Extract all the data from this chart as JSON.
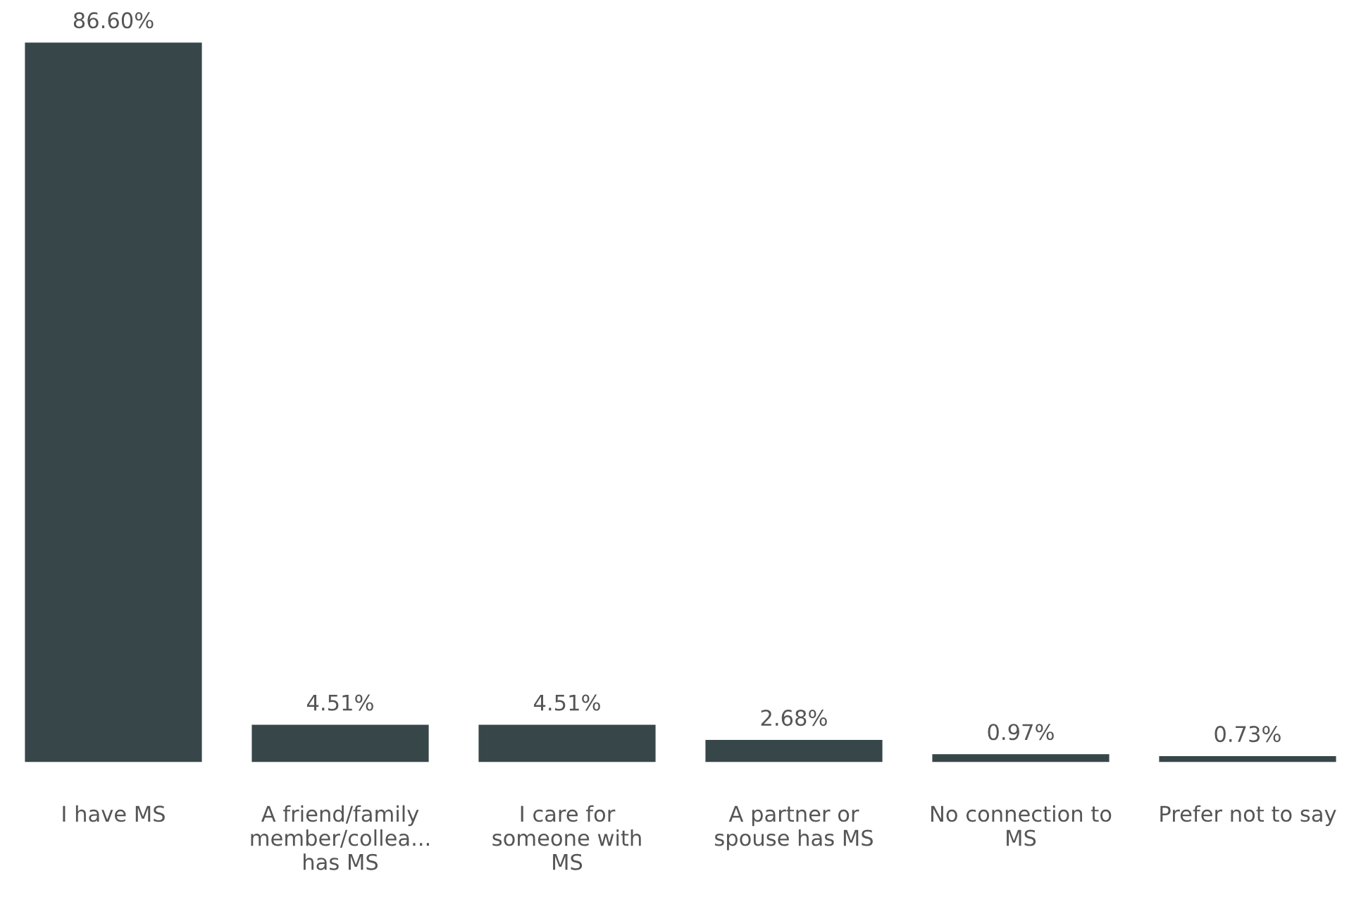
{
  "chart_data": {
    "type": "bar",
    "categories": [
      "I have MS",
      "A friend/family\nmember/collea...\nhas MS",
      "I care for\nsomeone with\nMS",
      "A partner or\nspouse has MS",
      "No connection to\nMS",
      "Prefer not to say"
    ],
    "values": [
      86.6,
      4.51,
      4.51,
      2.68,
      0.97,
      0.73
    ],
    "value_labels": [
      "86.60%",
      "4.51%",
      "4.51%",
      "2.68%",
      "0.97%",
      "0.73%"
    ],
    "color": "#374649",
    "grid": false,
    "legend": false
  }
}
